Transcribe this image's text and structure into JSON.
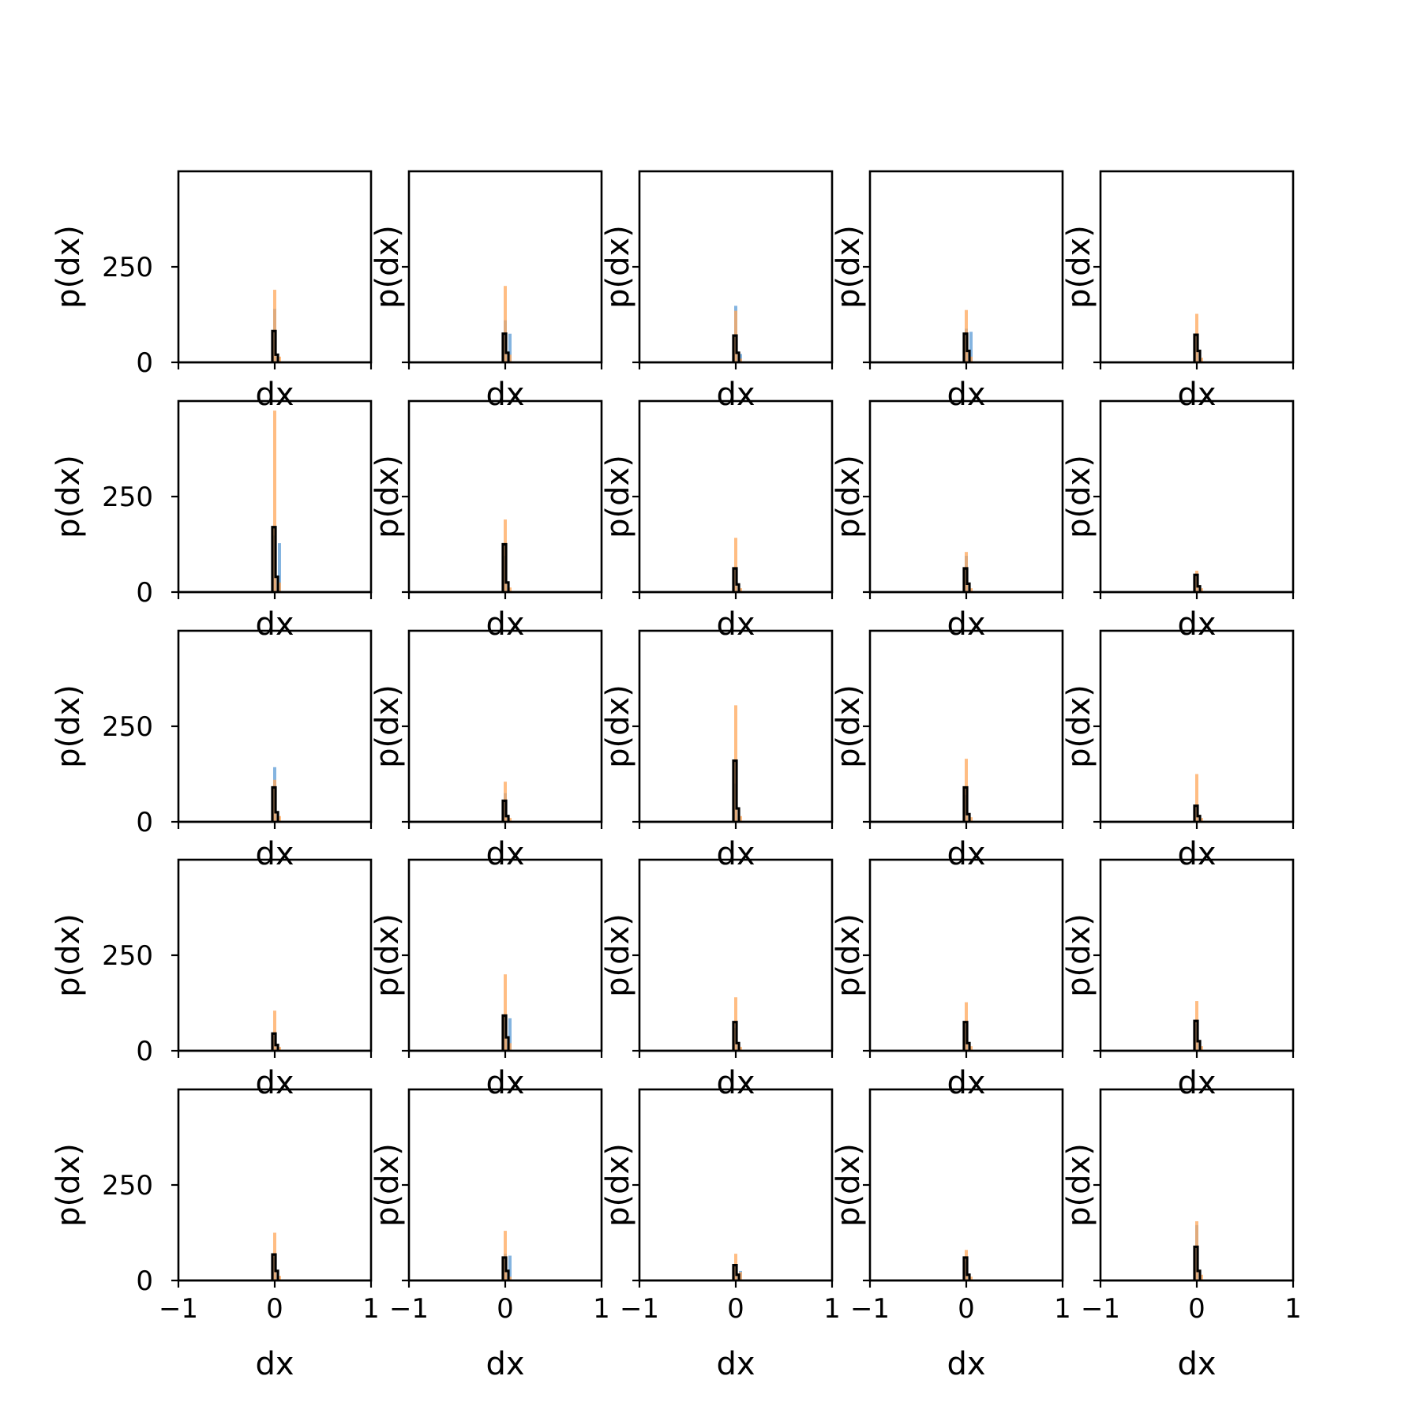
{
  "chart_data": {
    "type": "grid-of-histograms",
    "rows": 5,
    "cols": 5,
    "xlabel": "dx",
    "ylabel": "p(dx)",
    "xlim": [
      -1,
      1
    ],
    "ylim": [
      0,
      500
    ],
    "xticks": [
      -1,
      0,
      1
    ],
    "xtick_labels": [
      "−1",
      "0",
      "1"
    ],
    "yticks": [
      0,
      250
    ],
    "ytick_labels": [
      "0",
      "250"
    ],
    "colors": {
      "series_a": "#5b9bd5",
      "series_b": "#ffa75a",
      "outline": "#000000"
    },
    "panels": [
      {
        "row": 0,
        "col": 0,
        "series_b": [
          190,
          15
        ],
        "series_a": [
          140,
          0
        ],
        "outline": [
          82,
          20
        ]
      },
      {
        "row": 0,
        "col": 1,
        "series_b": [
          200,
          20
        ],
        "series_a": [
          110,
          75
        ],
        "outline": [
          75,
          25
        ]
      },
      {
        "row": 0,
        "col": 2,
        "series_b": [
          135,
          10
        ],
        "series_a": [
          148,
          22
        ],
        "outline": [
          70,
          25
        ]
      },
      {
        "row": 0,
        "col": 3,
        "series_b": [
          137,
          15
        ],
        "series_a": [
          88,
          80
        ],
        "outline": [
          75,
          30
        ]
      },
      {
        "row": 0,
        "col": 4,
        "series_b": [
          127,
          12
        ],
        "series_a": [
          70,
          0
        ],
        "outline": [
          72,
          30
        ]
      },
      {
        "row": 1,
        "col": 0,
        "series_b": [
          475,
          25
        ],
        "series_a": [
          148,
          128
        ],
        "outline": [
          170,
          40
        ]
      },
      {
        "row": 1,
        "col": 1,
        "series_b": [
          190,
          12
        ],
        "series_a": [
          95,
          0
        ],
        "outline": [
          125,
          25
        ]
      },
      {
        "row": 1,
        "col": 2,
        "series_b": [
          142,
          10
        ],
        "series_a": [
          60,
          0
        ],
        "outline": [
          62,
          20
        ]
      },
      {
        "row": 1,
        "col": 3,
        "series_b": [
          105,
          10
        ],
        "series_a": [
          95,
          0
        ],
        "outline": [
          62,
          22
        ]
      },
      {
        "row": 1,
        "col": 4,
        "series_b": [
          56,
          10
        ],
        "series_a": [
          40,
          0
        ],
        "outline": [
          45,
          15
        ]
      },
      {
        "row": 2,
        "col": 0,
        "series_b": [
          110,
          15
        ],
        "series_a": [
          143,
          0
        ],
        "outline": [
          90,
          25
        ]
      },
      {
        "row": 2,
        "col": 1,
        "series_b": [
          105,
          10
        ],
        "series_a": [
          75,
          0
        ],
        "outline": [
          55,
          15
        ]
      },
      {
        "row": 2,
        "col": 2,
        "series_b": [
          305,
          15
        ],
        "series_a": [
          100,
          0
        ],
        "outline": [
          160,
          35
        ]
      },
      {
        "row": 2,
        "col": 3,
        "series_b": [
          165,
          12
        ],
        "series_a": [
          70,
          0
        ],
        "outline": [
          90,
          20
        ]
      },
      {
        "row": 2,
        "col": 4,
        "series_b": [
          125,
          10
        ],
        "series_a": [
          40,
          0
        ],
        "outline": [
          42,
          15
        ]
      },
      {
        "row": 3,
        "col": 0,
        "series_b": [
          105,
          10
        ],
        "series_a": [
          40,
          0
        ],
        "outline": [
          45,
          15
        ]
      },
      {
        "row": 3,
        "col": 1,
        "series_b": [
          200,
          20
        ],
        "series_a": [
          90,
          85
        ],
        "outline": [
          92,
          35
        ]
      },
      {
        "row": 3,
        "col": 2,
        "series_b": [
          140,
          10
        ],
        "series_a": [
          60,
          0
        ],
        "outline": [
          75,
          20
        ]
      },
      {
        "row": 3,
        "col": 3,
        "series_b": [
          127,
          12
        ],
        "series_a": [
          70,
          0
        ],
        "outline": [
          75,
          20
        ]
      },
      {
        "row": 3,
        "col": 4,
        "series_b": [
          130,
          12
        ],
        "series_a": [
          70,
          0
        ],
        "outline": [
          78,
          25
        ]
      },
      {
        "row": 4,
        "col": 0,
        "series_b": [
          125,
          12
        ],
        "series_a": [
          60,
          0
        ],
        "outline": [
          68,
          25
        ]
      },
      {
        "row": 4,
        "col": 1,
        "series_b": [
          130,
          10
        ],
        "series_a": [
          70,
          65
        ],
        "outline": [
          60,
          25
        ]
      },
      {
        "row": 4,
        "col": 2,
        "series_b": [
          70,
          22
        ],
        "series_a": [
          35,
          25
        ],
        "outline": [
          40,
          15
        ]
      },
      {
        "row": 4,
        "col": 3,
        "series_b": [
          80,
          10
        ],
        "series_a": [
          50,
          0
        ],
        "outline": [
          60,
          15
        ]
      },
      {
        "row": 4,
        "col": 4,
        "series_b": [
          155,
          15
        ],
        "series_a": [
          145,
          0
        ],
        "outline": [
          88,
          25
        ]
      }
    ]
  }
}
